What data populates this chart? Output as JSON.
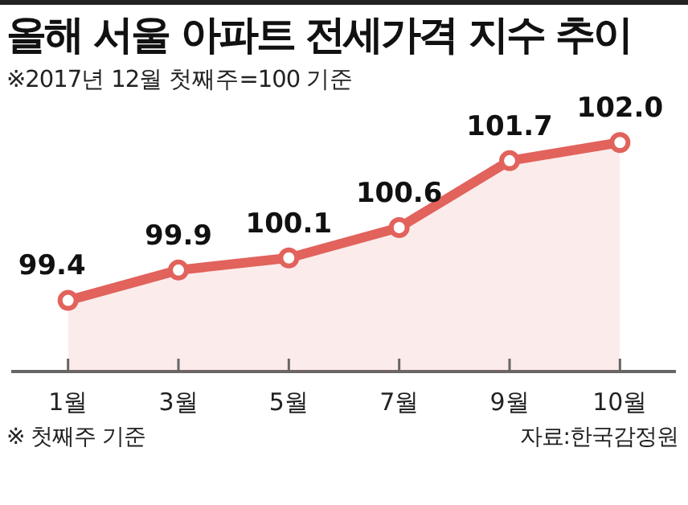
{
  "chart_data": {
    "type": "area",
    "title": "올해 서울 아파트 전세가격 지수 추이",
    "subtitle": "※2017년 12월 첫째주=100 기준",
    "categories": [
      "1월",
      "3월",
      "5월",
      "7월",
      "9월",
      "10월"
    ],
    "series": [
      {
        "color": "#e2625c",
        "values": [
          99.4,
          99.9,
          100.1,
          100.6,
          101.7,
          102.0
        ],
        "value_labels": [
          "99.4",
          "99.9",
          "100.1",
          "100.6",
          "101.7",
          "102.0"
        ]
      }
    ],
    "marker": "circle",
    "grid": false,
    "legend": false,
    "tick_labels": "x",
    "annotations": [
      "※ 첫째주 기준",
      "자료:한국감정원"
    ]
  }
}
